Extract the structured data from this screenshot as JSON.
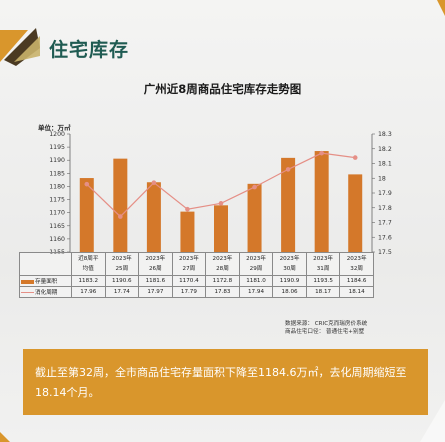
{
  "header": {
    "title": "住宅库存"
  },
  "chart_data": {
    "type": "bar+line",
    "title": "广州近8周商品住宅库存走势图",
    "unit_label": "单位：万㎡",
    "categories": [
      "近8周平均值",
      "2023年25周",
      "2023年26周",
      "2023年27周",
      "2023年28周",
      "2023年29周",
      "2023年30周",
      "2023年31周",
      "2023年32周"
    ],
    "category_lines": [
      [
        "近8周平",
        "均值"
      ],
      [
        "2023年",
        "25周"
      ],
      [
        "2023年",
        "26周"
      ],
      [
        "2023年",
        "27周"
      ],
      [
        "2023年",
        "28周"
      ],
      [
        "2023年",
        "29周"
      ],
      [
        "2023年",
        "30周"
      ],
      [
        "2023年",
        "31周"
      ],
      [
        "2023年",
        "32周"
      ]
    ],
    "series": [
      {
        "name": "存量面积",
        "type": "bar",
        "axis": "left",
        "color": "#d4782a",
        "values": [
          1183.2,
          1190.6,
          1181.6,
          1170.4,
          1172.8,
          1181.0,
          1190.9,
          1193.5,
          1184.6
        ],
        "labels": [
          "1183.2",
          "1190.6",
          "1181.6",
          "1170.4",
          "1172.8",
          "1181.0",
          "1190.9",
          "1193.5",
          "1184.6"
        ]
      },
      {
        "name": "消化周期",
        "type": "line",
        "axis": "right",
        "color": "#e58f86",
        "values": [
          17.96,
          17.74,
          17.97,
          17.79,
          17.83,
          17.94,
          18.06,
          18.17,
          18.14
        ],
        "labels": [
          "17.96",
          "17.74",
          "17.97",
          "17.79",
          "17.83",
          "17.94",
          "18.06",
          "18.17",
          "18.14"
        ]
      }
    ],
    "y_left": {
      "min": 1155,
      "max": 1200,
      "ticks": [
        "1200",
        "1195",
        "1190",
        "1185",
        "1180",
        "1175",
        "1170",
        "1165",
        "1160",
        "1155"
      ]
    },
    "y_right": {
      "min": 17.5,
      "max": 18.3,
      "ticks": [
        "18.3",
        "18.2",
        "18.1",
        "18",
        "17.9",
        "17.8",
        "17.7",
        "17.6",
        "17.5"
      ]
    }
  },
  "source": {
    "line1": "数据来源： CRIC克而瑞房价系统",
    "line2": "商品住宅口径： 普通住宅+别墅"
  },
  "banner": {
    "text": "截止至第32周，全市商品住宅存量面积下降至1184.6万㎡，去化周期缩短至18.14个月。"
  },
  "colors": {
    "accent": "#d9962c",
    "title_green": "#1f5b52",
    "bar": "#d4782a",
    "line": "#e58f86"
  }
}
